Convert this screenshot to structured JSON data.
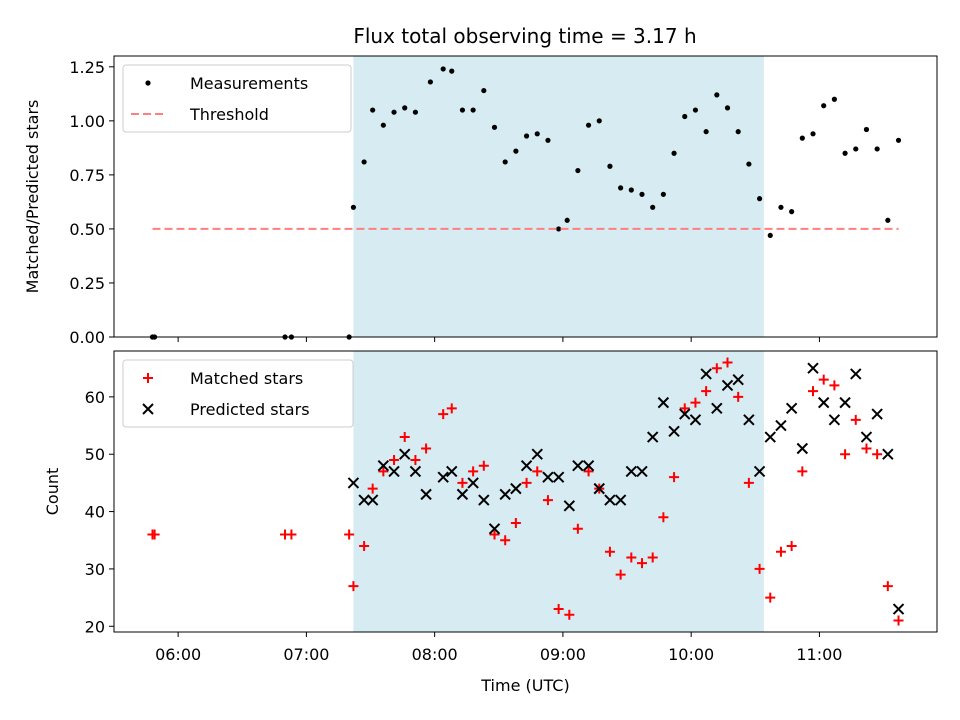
{
  "title": "Flux total observing time = 3.17 h",
  "chart_data": [
    {
      "type": "scatter",
      "ylabel": "Matched/Predicted stars",
      "xlim": [
        "05:30",
        "11:55"
      ],
      "ylim": [
        0,
        1.3
      ],
      "yticks": [
        0,
        0.25,
        0.5,
        0.75,
        1.0,
        1.25
      ],
      "ytick_labels": [
        "0.00",
        "0.25",
        "0.50",
        "0.75",
        "1.00",
        "1.25"
      ],
      "grid": false,
      "legend_position": "upper left",
      "highlight_span": [
        "07:22",
        "10:34"
      ],
      "series": [
        {
          "name": "Measurements",
          "marker": "dot",
          "color": "#000000",
          "points": [
            [
              "05:48",
              0.0
            ],
            [
              "05:49",
              0.0
            ],
            [
              "06:50",
              0.0
            ],
            [
              "06:53",
              0.0
            ],
            [
              "07:20",
              0.0
            ],
            [
              "07:22",
              0.6
            ],
            [
              "07:27",
              0.81
            ],
            [
              "07:31",
              1.05
            ],
            [
              "07:36",
              0.98
            ],
            [
              "07:41",
              1.04
            ],
            [
              "07:46",
              1.06
            ],
            [
              "07:51",
              1.04
            ],
            [
              "07:58",
              1.18
            ],
            [
              "08:04",
              1.24
            ],
            [
              "08:08",
              1.23
            ],
            [
              "08:13",
              1.05
            ],
            [
              "08:18",
              1.05
            ],
            [
              "08:23",
              1.14
            ],
            [
              "08:28",
              0.97
            ],
            [
              "08:33",
              0.81
            ],
            [
              "08:38",
              0.86
            ],
            [
              "08:43",
              0.93
            ],
            [
              "08:48",
              0.94
            ],
            [
              "08:53",
              0.91
            ],
            [
              "08:58",
              0.5
            ],
            [
              "09:02",
              0.54
            ],
            [
              "09:07",
              0.77
            ],
            [
              "09:12",
              0.98
            ],
            [
              "09:17",
              1.0
            ],
            [
              "09:22",
              0.79
            ],
            [
              "09:27",
              0.69
            ],
            [
              "09:32",
              0.68
            ],
            [
              "09:37",
              0.66
            ],
            [
              "09:42",
              0.6
            ],
            [
              "09:47",
              0.66
            ],
            [
              "09:52",
              0.85
            ],
            [
              "09:57",
              1.02
            ],
            [
              "10:02",
              1.05
            ],
            [
              "10:07",
              0.95
            ],
            [
              "10:12",
              1.12
            ],
            [
              "10:17",
              1.06
            ],
            [
              "10:22",
              0.95
            ],
            [
              "10:27",
              0.8
            ],
            [
              "10:32",
              0.64
            ],
            [
              "10:37",
              0.47
            ],
            [
              "10:42",
              0.6
            ],
            [
              "10:47",
              0.58
            ],
            [
              "10:52",
              0.92
            ],
            [
              "10:57",
              0.94
            ],
            [
              "11:02",
              1.07
            ],
            [
              "11:07",
              1.1
            ],
            [
              "11:12",
              0.85
            ],
            [
              "11:17",
              0.87
            ],
            [
              "11:22",
              0.96
            ],
            [
              "11:27",
              0.87
            ],
            [
              "11:32",
              0.54
            ],
            [
              "11:37",
              0.91
            ]
          ]
        },
        {
          "name": "Threshold",
          "marker": "dashed-line",
          "color": "#ff7f7f",
          "points": [
            [
              "05:48",
              0.5
            ],
            [
              "11:37",
              0.5
            ]
          ]
        }
      ]
    },
    {
      "type": "scatter",
      "xlabel": "Time (UTC)",
      "ylabel": "Count",
      "xlim": [
        "05:30",
        "11:55"
      ],
      "ylim": [
        19,
        68
      ],
      "xticks": [
        "06:00",
        "07:00",
        "08:00",
        "09:00",
        "10:00",
        "11:00"
      ],
      "yticks": [
        20,
        30,
        40,
        50,
        60
      ],
      "grid": false,
      "legend_position": "upper left",
      "highlight_span": [
        "07:22",
        "10:34"
      ],
      "series": [
        {
          "name": "Matched stars",
          "marker": "plus",
          "color": "#ff0000",
          "points": [
            [
              "05:48",
              36
            ],
            [
              "05:49",
              36
            ],
            [
              "06:50",
              36
            ],
            [
              "06:53",
              36
            ],
            [
              "07:20",
              36
            ],
            [
              "07:22",
              27
            ],
            [
              "07:27",
              34
            ],
            [
              "07:31",
              44
            ],
            [
              "07:36",
              47
            ],
            [
              "07:41",
              49
            ],
            [
              "07:46",
              53
            ],
            [
              "07:51",
              49
            ],
            [
              "07:56",
              51
            ],
            [
              "08:04",
              57
            ],
            [
              "08:08",
              58
            ],
            [
              "08:13",
              45
            ],
            [
              "08:18",
              47
            ],
            [
              "08:23",
              48
            ],
            [
              "08:28",
              36
            ],
            [
              "08:33",
              35
            ],
            [
              "08:38",
              38
            ],
            [
              "08:43",
              45
            ],
            [
              "08:48",
              47
            ],
            [
              "08:53",
              42
            ],
            [
              "08:58",
              23
            ],
            [
              "09:03",
              22
            ],
            [
              "09:07",
              37
            ],
            [
              "09:12",
              47
            ],
            [
              "09:17",
              44
            ],
            [
              "09:22",
              33
            ],
            [
              "09:27",
              29
            ],
            [
              "09:32",
              32
            ],
            [
              "09:37",
              31
            ],
            [
              "09:42",
              32
            ],
            [
              "09:47",
              39
            ],
            [
              "09:52",
              46
            ],
            [
              "09:57",
              58
            ],
            [
              "10:02",
              59
            ],
            [
              "10:07",
              61
            ],
            [
              "10:12",
              65
            ],
            [
              "10:17",
              66
            ],
            [
              "10:22",
              60
            ],
            [
              "10:27",
              45
            ],
            [
              "10:32",
              30
            ],
            [
              "10:37",
              25
            ],
            [
              "10:42",
              33
            ],
            [
              "10:47",
              34
            ],
            [
              "10:52",
              47
            ],
            [
              "10:57",
              61
            ],
            [
              "11:02",
              63
            ],
            [
              "11:07",
              62
            ],
            [
              "11:12",
              50
            ],
            [
              "11:17",
              56
            ],
            [
              "11:22",
              51
            ],
            [
              "11:27",
              50
            ],
            [
              "11:32",
              27
            ],
            [
              "11:37",
              21
            ]
          ]
        },
        {
          "name": "Predicted stars",
          "marker": "x",
          "color": "#000000",
          "points": [
            [
              "07:22",
              45
            ],
            [
              "07:27",
              42
            ],
            [
              "07:31",
              42
            ],
            [
              "07:36",
              48
            ],
            [
              "07:41",
              47
            ],
            [
              "07:46",
              50
            ],
            [
              "07:51",
              47
            ],
            [
              "07:56",
              43
            ],
            [
              "08:04",
              46
            ],
            [
              "08:08",
              47
            ],
            [
              "08:13",
              43
            ],
            [
              "08:18",
              45
            ],
            [
              "08:23",
              42
            ],
            [
              "08:28",
              37
            ],
            [
              "08:33",
              43
            ],
            [
              "08:38",
              44
            ],
            [
              "08:43",
              48
            ],
            [
              "08:48",
              50
            ],
            [
              "08:53",
              46
            ],
            [
              "08:58",
              46
            ],
            [
              "09:03",
              41
            ],
            [
              "09:07",
              48
            ],
            [
              "09:12",
              48
            ],
            [
              "09:17",
              44
            ],
            [
              "09:22",
              42
            ],
            [
              "09:27",
              42
            ],
            [
              "09:32",
              47
            ],
            [
              "09:37",
              47
            ],
            [
              "09:42",
              53
            ],
            [
              "09:47",
              59
            ],
            [
              "09:52",
              54
            ],
            [
              "09:57",
              57
            ],
            [
              "10:02",
              56
            ],
            [
              "10:07",
              64
            ],
            [
              "10:12",
              58
            ],
            [
              "10:17",
              62
            ],
            [
              "10:22",
              63
            ],
            [
              "10:27",
              56
            ],
            [
              "10:32",
              47
            ],
            [
              "10:37",
              53
            ],
            [
              "10:42",
              55
            ],
            [
              "10:47",
              58
            ],
            [
              "10:52",
              51
            ],
            [
              "10:57",
              65
            ],
            [
              "11:02",
              59
            ],
            [
              "11:07",
              56
            ],
            [
              "11:12",
              59
            ],
            [
              "11:17",
              64
            ],
            [
              "11:22",
              53
            ],
            [
              "11:27",
              57
            ],
            [
              "11:32",
              50
            ],
            [
              "11:37",
              23
            ]
          ]
        }
      ]
    }
  ],
  "colors": {
    "highlight": "#add8e6",
    "matched": "#ff0000",
    "predicted": "#000000",
    "measurement": "#000000",
    "threshold": "#ff7f7f"
  }
}
